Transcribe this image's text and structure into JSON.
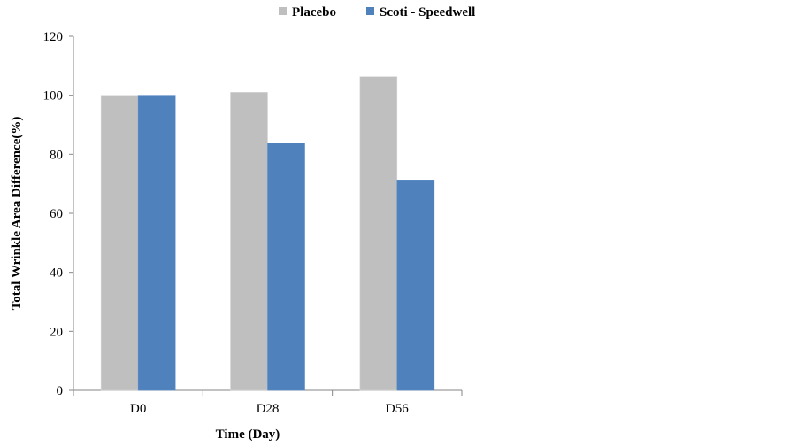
{
  "chart_data": {
    "type": "bar",
    "categories": [
      "D0",
      "D28",
      "D56"
    ],
    "series": [
      {
        "name": "Placebo",
        "values": [
          100,
          101,
          106.3
        ],
        "color": "#bfbfbf"
      },
      {
        "name": "Scoti - Speedwell",
        "values": [
          100,
          83.9,
          71.3
        ],
        "color": "#4f81bd"
      }
    ],
    "xlabel": "Time (Day)",
    "ylabel": "Total Wrinkle Area Difference(%)",
    "ylim": [
      0,
      120
    ],
    "yticks": [
      0,
      20,
      40,
      60,
      80,
      100,
      120
    ],
    "grid": false,
    "legend": "top"
  }
}
